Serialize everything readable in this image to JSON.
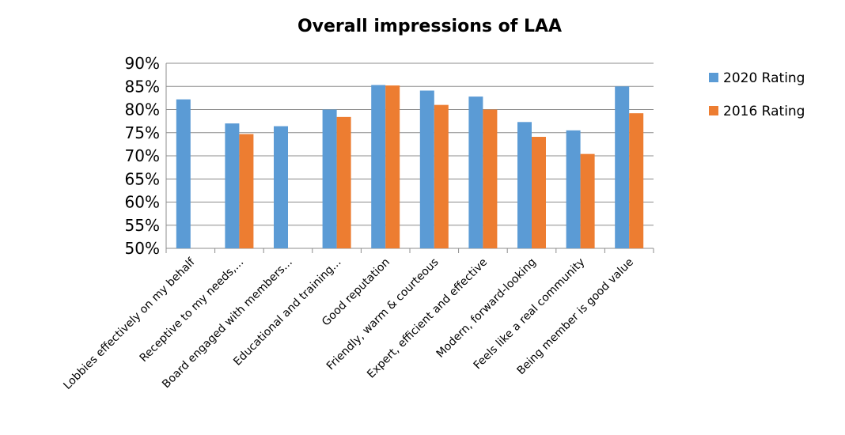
{
  "chart_data": {
    "type": "bar",
    "title": "Overall impressions of LAA",
    "xlabel": "",
    "ylabel": "",
    "ylim": [
      50,
      90
    ],
    "yticks": [
      "50%",
      "55%",
      "60%",
      "65%",
      "70%",
      "75%",
      "80%",
      "85%",
      "90%"
    ],
    "grid": true,
    "legend_position": "right",
    "categories": [
      "Lobbies effectively on my behalf",
      "Receptive to my needs,...",
      "Board engaged with members...",
      "Educational and training...",
      "Good reputation",
      "Friendly, warm & courteous",
      "Expert, efficient and effective",
      "Modern, forward-looking",
      "Feels like a real community",
      "Being member is good value"
    ],
    "series": [
      {
        "name": "2020 Rating",
        "color": "#5b9bd5",
        "values": [
          82.2,
          77.0,
          76.4,
          80.0,
          85.3,
          84.1,
          82.8,
          77.3,
          75.5,
          85.0
        ]
      },
      {
        "name": "2016 Rating",
        "color": "#ed7d31",
        "values": [
          null,
          74.7,
          null,
          78.4,
          85.2,
          81.0,
          80.0,
          74.1,
          70.4,
          79.2
        ]
      }
    ]
  }
}
